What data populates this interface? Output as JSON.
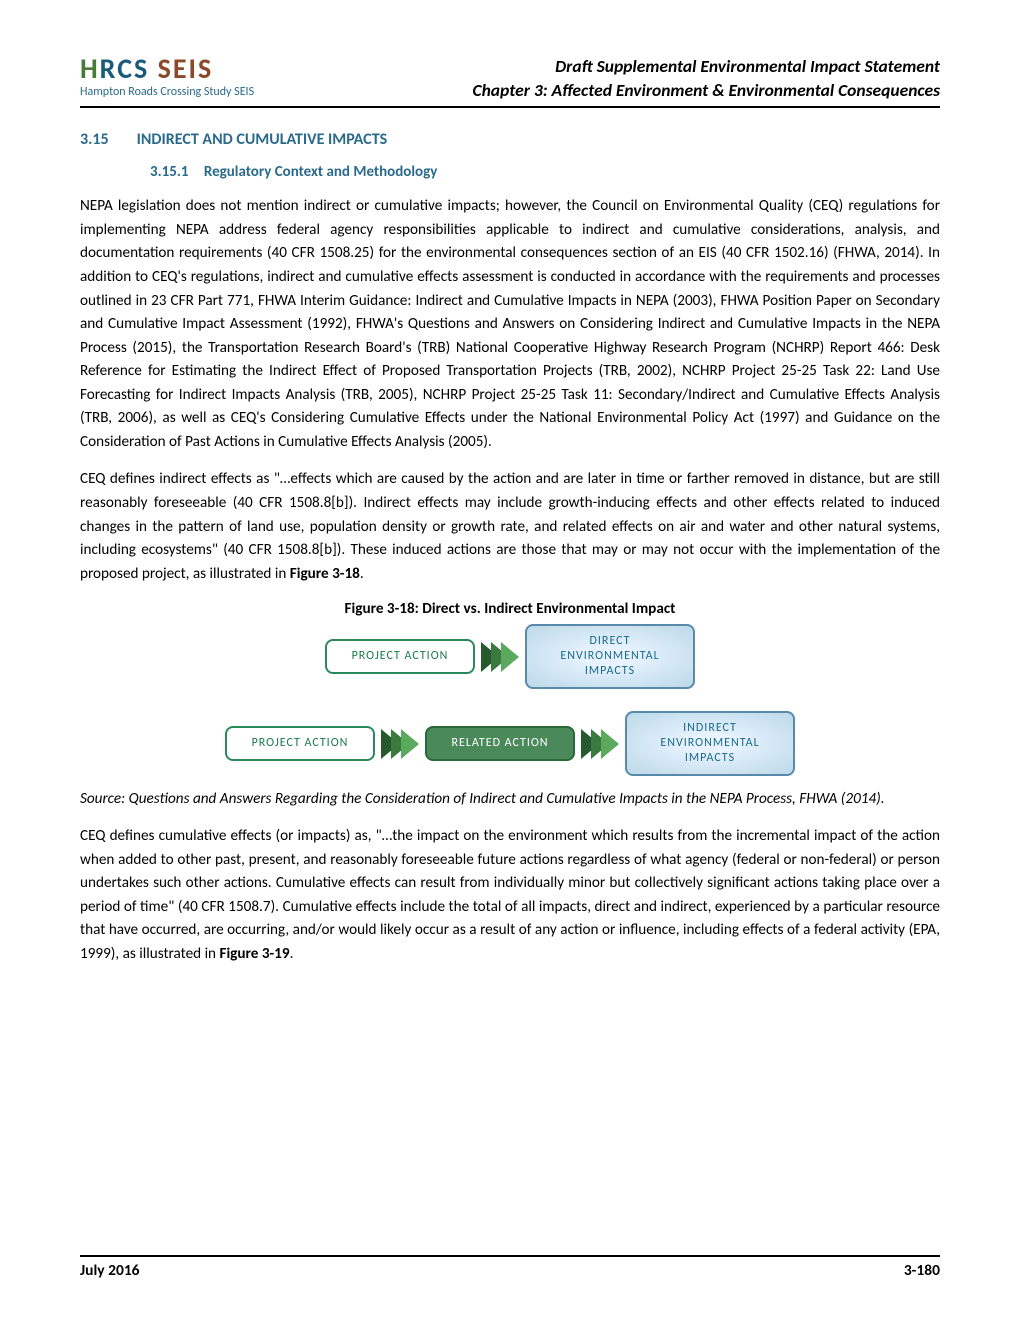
{
  "header": {
    "logo_main_h": "H",
    "logo_main_rcs": "RCS ",
    "logo_main_seis": "SEIS",
    "logo_sub": "Hampton Roads Crossing Study SEIS",
    "title_line1": "Draft Supplemental Environmental Impact Statement",
    "title_line2": "Chapter 3: Affected Environment & Environmental Consequences"
  },
  "section": {
    "num": "3.15",
    "title": "INDIRECT AND CUMULATIVE IMPACTS"
  },
  "subsection": {
    "num": "3.15.1",
    "title": "Regulatory Context and Methodology"
  },
  "paragraphs": {
    "p1": "NEPA legislation does not mention indirect or cumulative impacts; however, the Council on Environmental Quality (CEQ) regulations for implementing NEPA address federal agency responsibilities applicable to indirect and cumulative considerations, analysis, and documentation requirements (40 CFR 1508.25) for the environmental consequences section of an EIS (40 CFR 1502.16) (FHWA, 2014). In addition to CEQ's regulations, indirect and cumulative effects assessment is conducted in accordance with the requirements and processes outlined in 23 CFR Part 771, FHWA Interim Guidance: Indirect and Cumulative Impacts in NEPA (2003), FHWA Position Paper on Secondary and Cumulative Impact Assessment (1992), FHWA's Questions and Answers on Considering Indirect and Cumulative Impacts in the NEPA Process (2015), the Transportation Research Board's (TRB) National Cooperative Highway Research Program (NCHRP) Report 466: Desk Reference for Estimating the Indirect Effect of Proposed Transportation Projects (TRB, 2002), NCHRP Project 25-25 Task 22: Land Use Forecasting for Indirect Impacts Analysis (TRB, 2005), NCHRP Project 25-25 Task 11: Secondary/Indirect and Cumulative Effects Analysis (TRB, 2006), as well as CEQ's Considering Cumulative Effects under the National Environmental Policy Act (1997) and Guidance on the Consideration of Past Actions in Cumulative Effects Analysis (2005).",
    "p2_a": "CEQ defines indirect effects as \"…effects which are caused by the action and are later in time or farther removed in distance, but are still reasonably foreseeable (40 CFR 1508.8[b]). Indirect effects may include growth-inducing effects and other effects related to induced changes in the pattern of land use, population density or growth rate, and related effects on air and water and other natural systems, including ecosystems\" (40 CFR 1508.8[b]). These induced actions are those that may or may not occur with the implementation of the proposed project, as illustrated in ",
    "p2_bold": "Figure 3-18",
    "p2_b": ".",
    "p3_a": "CEQ defines cumulative effects (or impacts) as, \"…the impact on the environment which results from the incremental impact of the action when added to other past, present, and reasonably foreseeable future actions regardless of what agency (federal or non-federal) or person undertakes such other actions. Cumulative effects can result from individually minor but collectively significant actions taking place over a period of time\" (40 CFR 1508.7). Cumulative effects include the total of all impacts, direct and indirect, experienced by a particular resource that have occurred, are occurring, and/or would likely occur as a result of any action or influence, including effects of a federal activity (EPA, 1999), as illustrated in ",
    "p3_bold": "Figure 3-19",
    "p3_b": "."
  },
  "figure": {
    "caption": "Figure 3-18:   Direct vs. Indirect Environmental Impact",
    "row1": {
      "box1": "PROJECT ACTION",
      "box2_l1": "DIRECT",
      "box2_l2": "ENVIRONMENTAL",
      "box2_l3": "IMPACTS"
    },
    "row2": {
      "box1": "PROJECT ACTION",
      "box2": "RELATED ACTION",
      "box3_l1": "INDIRECT",
      "box3_l2": "ENVIRONMENTAL",
      "box3_l3": "IMPACTS"
    },
    "chevron_colors": [
      "#265a2e",
      "#3a7a3e",
      "#5aa95e"
    ],
    "source": "Source: Questions and Answers Regarding the Consideration of Indirect and Cumulative Impacts in the NEPA Process, FHWA (2014)."
  },
  "footer": {
    "left": "July 2016",
    "right": "3-180"
  },
  "colors": {
    "heading": "#2a6a8a",
    "box_white_border": "#2a8a5a",
    "box_green_bg": "#4a8a5a",
    "box_blue_border": "#5a8aaa"
  }
}
